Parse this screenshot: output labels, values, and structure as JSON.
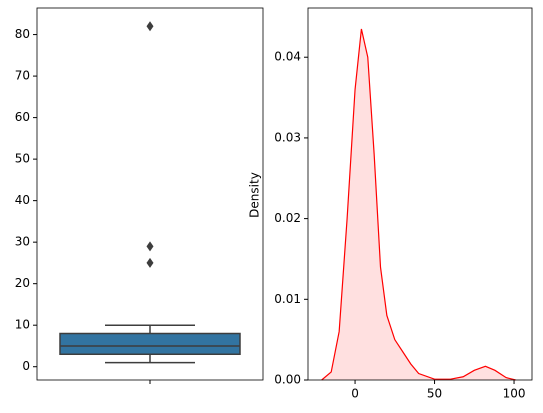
{
  "chart_data": [
    {
      "type": "box",
      "boxes": [
        {
          "whislo": 1,
          "q1": 3,
          "median": 5,
          "q3": 8,
          "whishi": 10,
          "fliers": [
            82,
            29,
            25
          ]
        }
      ],
      "color": "#3274a1",
      "ylim": [
        -3.2,
        86.4
      ],
      "yticks": [
        0,
        10,
        20,
        30,
        40,
        50,
        60,
        70,
        80
      ]
    },
    {
      "type": "kde",
      "y_label": "Density",
      "x": [
        -21,
        -15,
        -10,
        -5,
        0,
        4,
        8,
        12,
        16,
        20,
        25,
        30,
        35,
        40,
        50,
        60,
        68,
        75,
        82,
        88,
        95,
        101
      ],
      "values": [
        0,
        0.001,
        0.006,
        0.02,
        0.036,
        0.0435,
        0.04,
        0.028,
        0.014,
        0.008,
        0.005,
        0.0035,
        0.002,
        0.0008,
        0.0001,
        0.0001,
        0.0004,
        0.0012,
        0.0017,
        0.0012,
        0.0003,
        0
      ],
      "color": "#ff0000",
      "fill": "#ffe0e0",
      "xlim": [
        -29.6,
        111.3
      ],
      "xticks": [
        0,
        50,
        100
      ],
      "ylim": [
        0,
        0.0461
      ],
      "yticks": [
        {
          "value": 0,
          "label": "0.00"
        },
        {
          "value": 0.01,
          "label": "0.01"
        },
        {
          "value": 0.02,
          "label": "0.02"
        },
        {
          "value": 0.03,
          "label": "0.03"
        },
        {
          "value": 0.04,
          "label": "0.04"
        }
      ]
    }
  ]
}
